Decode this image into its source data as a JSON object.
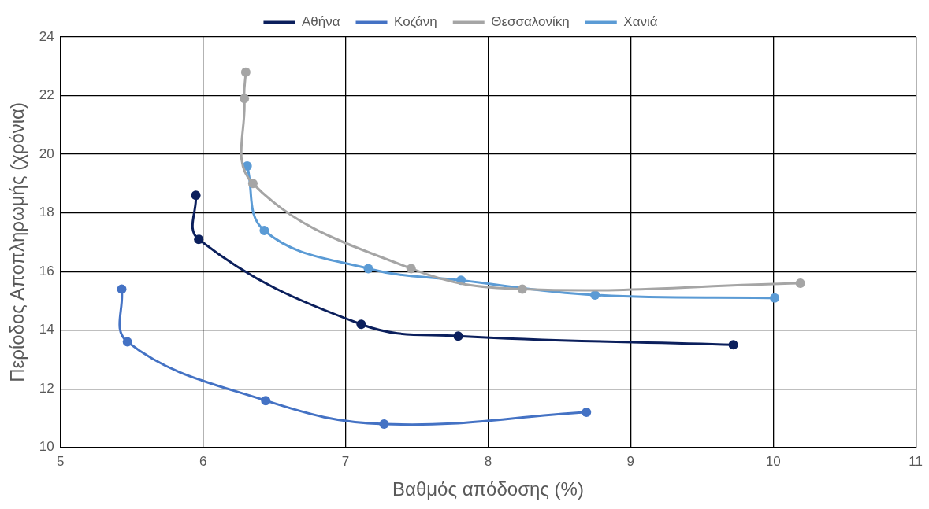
{
  "chart_data": {
    "type": "line",
    "xlabel": "Βαθμός απόδοσης (%)",
    "ylabel": "Περίοδος Αποπληρωμής (χρόνια)",
    "xlim": [
      5,
      11
    ],
    "xticks": [
      5,
      6,
      7,
      8,
      9,
      10,
      11
    ],
    "ylim": [
      10,
      24
    ],
    "yticks": [
      10,
      12,
      14,
      16,
      18,
      20,
      22,
      24
    ],
    "grid": true,
    "legend": "top",
    "marker": "circle",
    "line_style": "solid",
    "series": [
      {
        "name": "Αθήνα",
        "color": "#0b1f5c",
        "x": [
          5.95,
          5.97,
          7.11,
          7.79,
          9.72
        ],
        "values": [
          18.6,
          17.1,
          14.2,
          13.8,
          13.5
        ]
      },
      {
        "name": "Κοζάνη",
        "color": "#4472c4",
        "x": [
          5.43,
          5.47,
          6.44,
          7.27,
          8.69
        ],
        "values": [
          15.4,
          13.6,
          11.6,
          10.8,
          11.2
        ]
      },
      {
        "name": "Θεσσαλονίκη",
        "color": "#a5a5a5",
        "x": [
          6.3,
          6.29,
          6.35,
          7.46,
          8.24,
          10.19
        ],
        "values": [
          22.8,
          21.9,
          19.0,
          16.1,
          15.4,
          15.6
        ]
      },
      {
        "name": "Χανιά",
        "color": "#5b9bd5",
        "x": [
          6.31,
          6.43,
          7.16,
          7.81,
          8.75,
          10.01
        ],
        "values": [
          19.6,
          17.4,
          16.1,
          15.7,
          15.2,
          15.1
        ]
      }
    ]
  }
}
